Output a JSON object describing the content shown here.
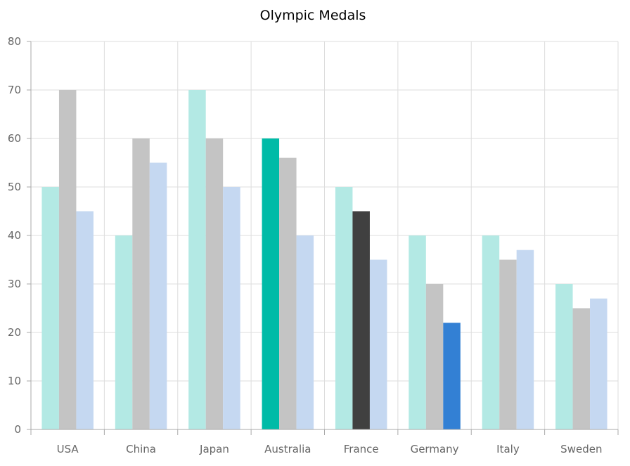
{
  "chart_data": {
    "type": "bar",
    "title": "Olympic Medals",
    "categories": [
      "USA",
      "China",
      "Japan",
      "Australia",
      "France",
      "Germany",
      "Italy",
      "Sweden"
    ],
    "series": [
      {
        "values": [
          50,
          40,
          70,
          60,
          50,
          40,
          40,
          30
        ]
      },
      {
        "values": [
          70,
          60,
          60,
          56,
          45,
          30,
          35,
          25
        ]
      },
      {
        "values": [
          45,
          55,
          50,
          40,
          35,
          22,
          37,
          27
        ]
      }
    ],
    "ylim": [
      0,
      80
    ],
    "yticks": [
      0,
      10,
      20,
      30,
      40,
      50,
      60,
      70,
      80
    ],
    "grid": true,
    "colors": {
      "series_base": [
        "#b3e9e4",
        "#c4c4c4",
        "#c5d8f1"
      ],
      "highlight": [
        "#00bba7",
        "#404040",
        "#3380d4"
      ],
      "grid": "#dddddd",
      "axis": "#aaaaaa"
    },
    "highlighted": [
      {
        "series": 0,
        "category": 3
      },
      {
        "series": 1,
        "category": 4
      },
      {
        "series": 2,
        "category": 5
      }
    ]
  }
}
